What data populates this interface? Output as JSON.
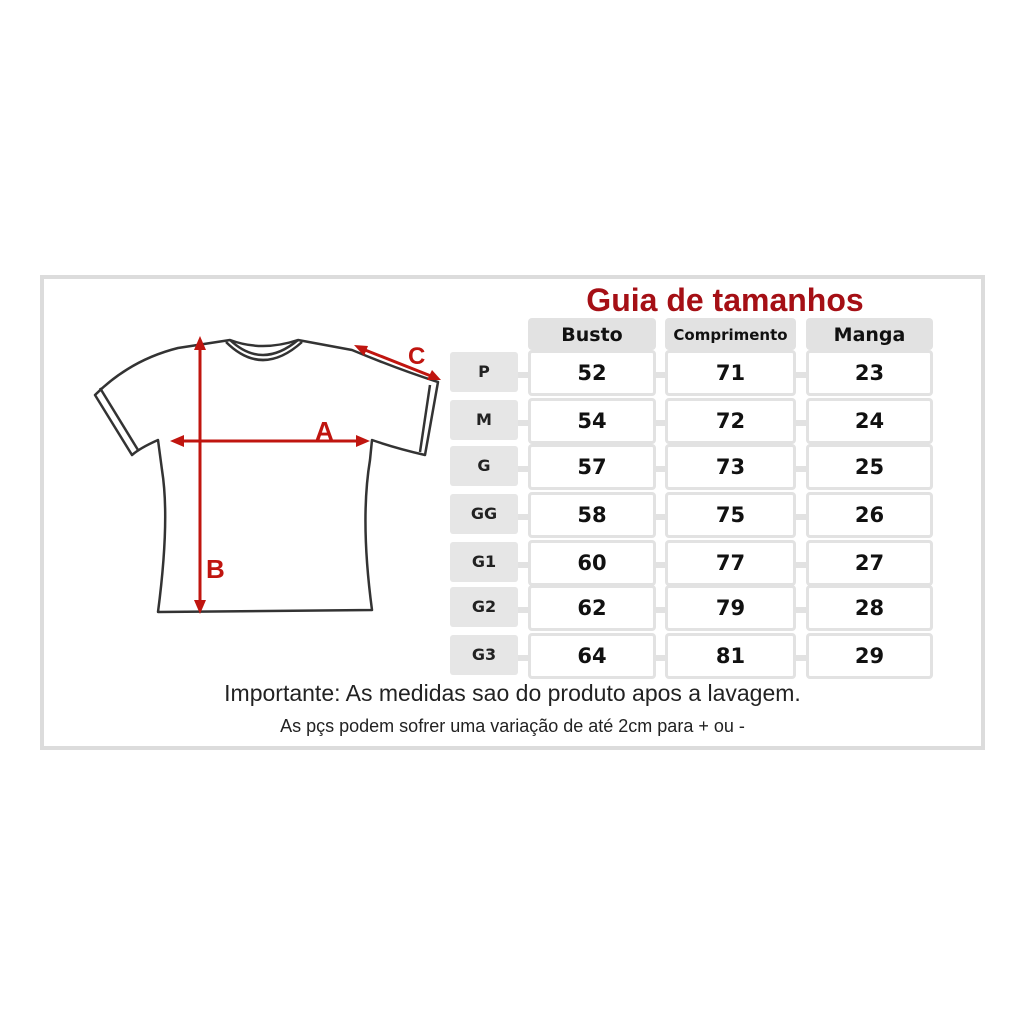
{
  "title": "Guia de tamanhos",
  "columns": [
    "Busto",
    "Comprimento",
    "Manga"
  ],
  "rows": [
    {
      "size": "P",
      "values": [
        "52",
        "71",
        "23"
      ]
    },
    {
      "size": "M",
      "values": [
        "54",
        "72",
        "24"
      ]
    },
    {
      "size": "G",
      "values": [
        "57",
        "73",
        "25"
      ]
    },
    {
      "size": "GG",
      "values": [
        "58",
        "75",
        "26"
      ]
    },
    {
      "size": "G1",
      "values": [
        "60",
        "77",
        "27"
      ]
    },
    {
      "size": "G2",
      "values": [
        "62",
        "79",
        "28"
      ]
    },
    {
      "size": "G3",
      "values": [
        "64",
        "81",
        "29"
      ]
    }
  ],
  "diagram": {
    "labels": {
      "a": "A",
      "b": "B",
      "c": "C"
    },
    "arrow_color": "#c0150f"
  },
  "notes": {
    "line1": "Importante: As medidas sao do produto apos a lavagem.",
    "line2": "As pçs podem sofrer uma variação de até 2cm para + ou -"
  },
  "colors": {
    "title": "#a50f15",
    "frame": "#dcdcdc"
  }
}
